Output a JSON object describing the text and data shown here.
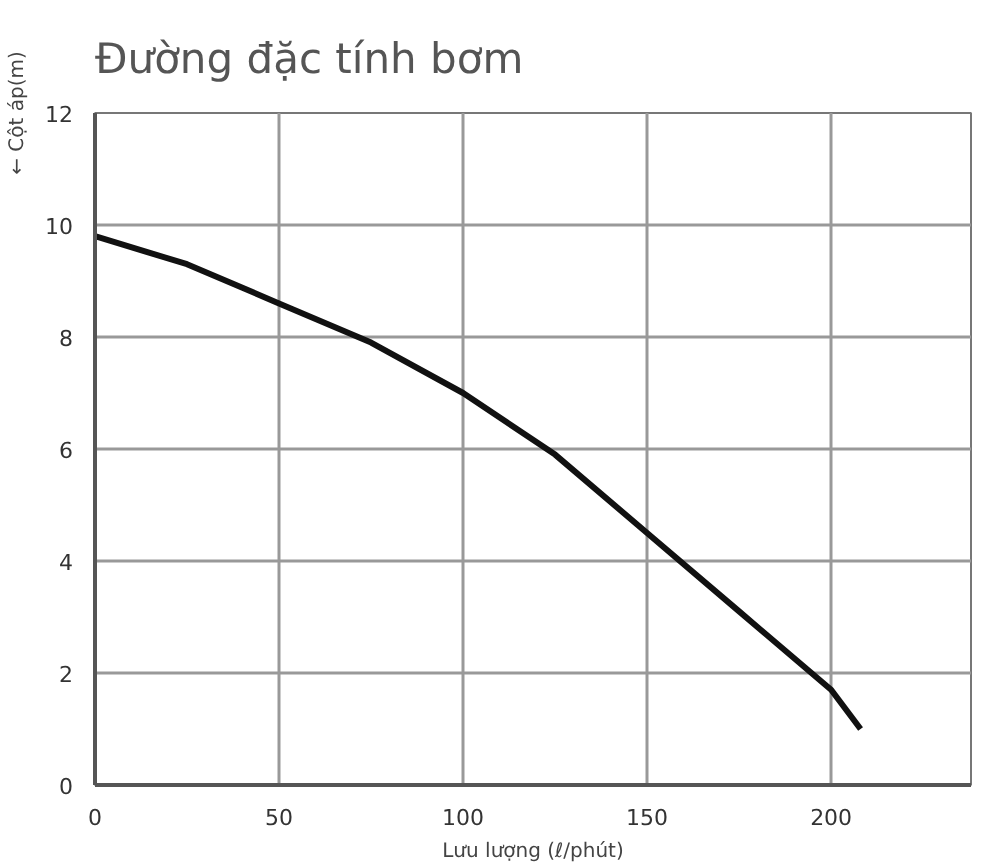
{
  "chart_data": {
    "type": "line",
    "title": "Đường đặc tính bơm",
    "xlabel": "Lưu lượng (ℓ/phút)",
    "ylabel": "← Cột áp(m)",
    "x": [
      0,
      25,
      50,
      75,
      100,
      125,
      150,
      175,
      200,
      208
    ],
    "series": [
      {
        "color": "#111111",
        "values": [
          9.8,
          9.3,
          8.6,
          7.9,
          7.0,
          5.9,
          4.5,
          3.1,
          1.7,
          1.0
        ]
      }
    ],
    "xlim": [
      0,
      238
    ],
    "ylim": [
      0,
      12
    ],
    "xticks": [
      0,
      50,
      100,
      150,
      200
    ],
    "yticks": [
      0,
      2,
      4,
      6,
      8,
      10,
      12
    ],
    "grid": true,
    "line_style": "solid"
  }
}
